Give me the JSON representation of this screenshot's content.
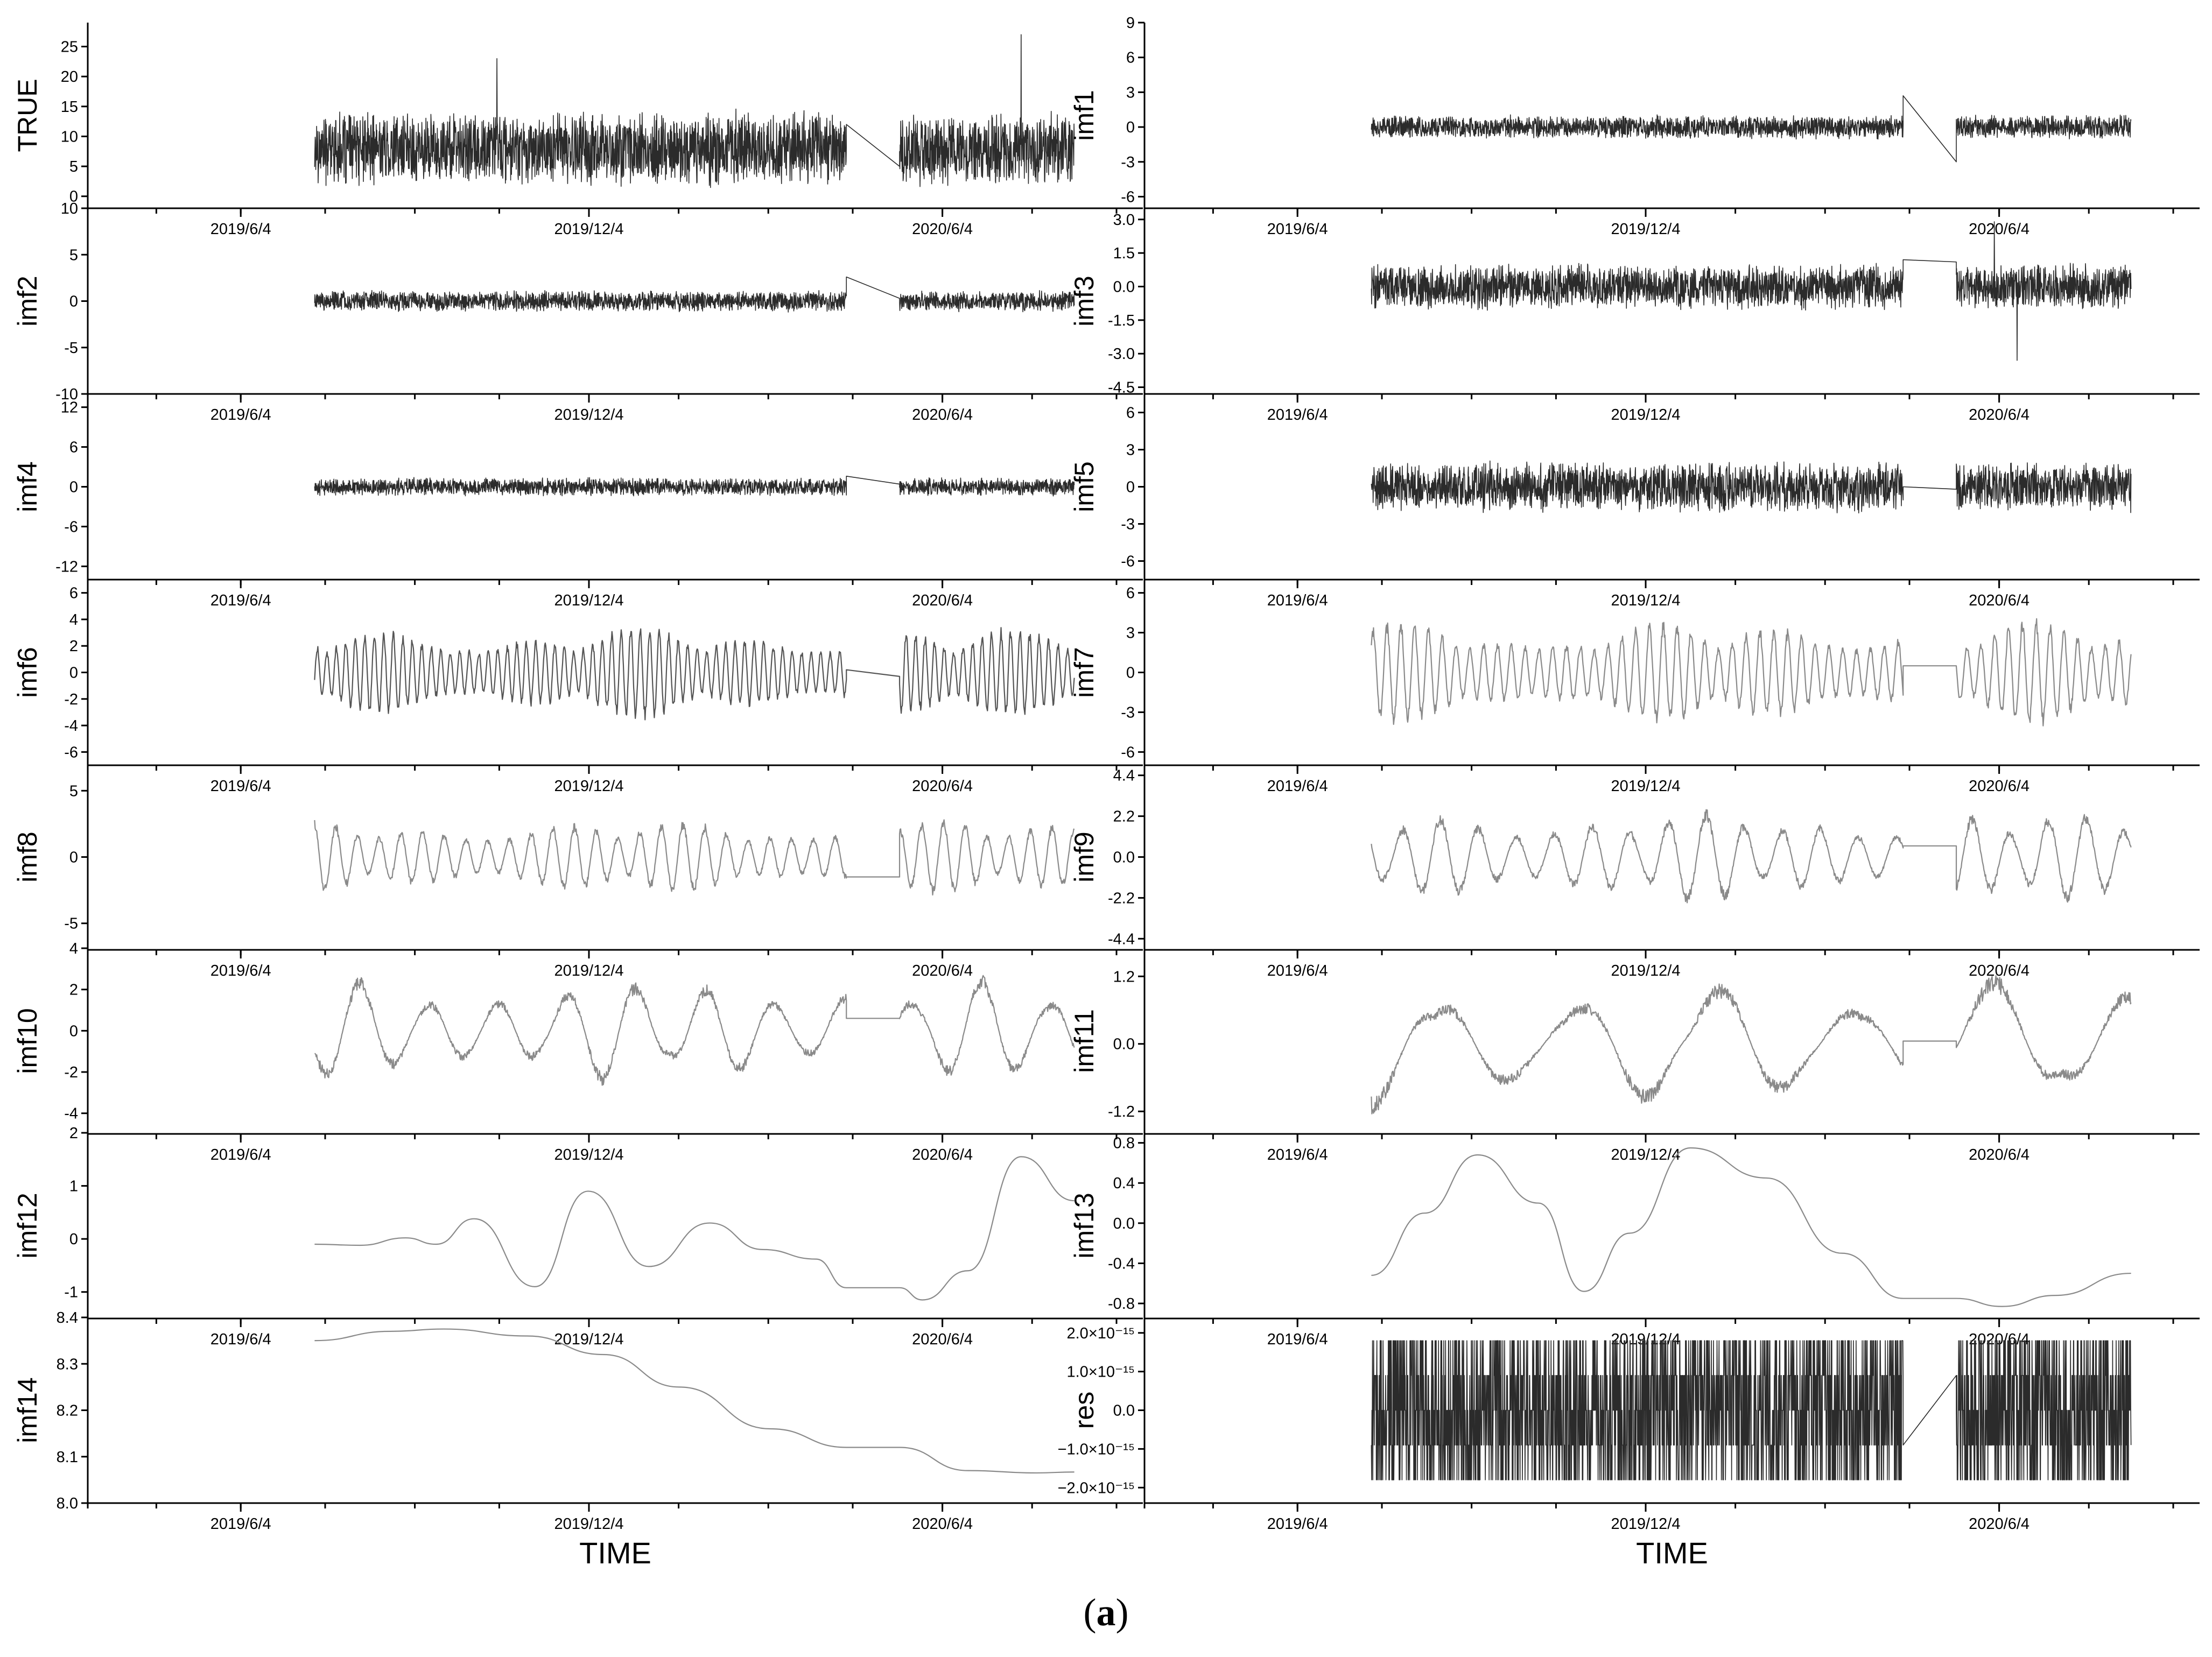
{
  "caption": {
    "prefix": "(",
    "letter": "a",
    "suffix": ")"
  },
  "colors": {
    "axis": "#000000",
    "dense": "#2b2b2b",
    "medium": "#555555",
    "light": "#8a8a8a"
  },
  "columns": [
    {
      "xlabel": "TIME"
    },
    {
      "xlabel": "TIME"
    }
  ],
  "chart_data": [
    {
      "type": "line",
      "panel": "TRUE",
      "column": 0,
      "row": 0,
      "ylabel": "TRUE",
      "ylim": [
        -2,
        29
      ],
      "yticks": [
        "0",
        "5",
        "10",
        "15",
        "20",
        "25"
      ],
      "ytick_values": [
        0,
        5,
        10,
        15,
        20,
        25
      ],
      "top_label": "",
      "xticks": [
        "2019/6/4",
        "2019/12/4",
        "2020/6/4"
      ],
      "style": "dense",
      "signal": {
        "kind": "noise",
        "base": 8,
        "amp": 5.5,
        "spikes": [
          [
            0.24,
            23
          ],
          [
            0.72,
            26
          ],
          [
            0.75,
            25.5
          ],
          [
            0.93,
            27
          ]
        ],
        "floor": 0
      },
      "gap": [
        0.7,
        0.77
      ],
      "gap_from": 12,
      "gap_to": 5,
      "xlabel": ""
    },
    {
      "type": "line",
      "panel": "imf1",
      "column": 1,
      "row": 0,
      "ylabel": "imf1",
      "ylim": [
        -7,
        9
      ],
      "yticks": [
        "-6",
        "-3",
        "0",
        "3",
        "6",
        "9"
      ],
      "ytick_values": [
        -6,
        -3,
        0,
        3,
        6,
        9
      ],
      "top_label": "",
      "xticks": [
        "2019/6/4",
        "2019/12/4",
        "2020/6/4"
      ],
      "style": "dense",
      "signal": {
        "kind": "noise",
        "base": 0,
        "amp": 0.9,
        "spikes": [
          [
            0.74,
            7
          ],
          [
            0.745,
            -5.8
          ]
        ]
      },
      "gap": [
        0.7,
        0.77
      ],
      "gap_from": 2.7,
      "gap_to": -3,
      "xlabel": ""
    },
    {
      "type": "line",
      "panel": "imf2",
      "column": 0,
      "row": 1,
      "ylabel": "imf2",
      "ylim": [
        -10,
        10
      ],
      "yticks": [
        "-10",
        "-5",
        "0",
        "5",
        "10"
      ],
      "ytick_values": [
        -10,
        -5,
        0,
        5,
        10
      ],
      "top_label": "10",
      "xticks": [
        "2019/6/4",
        "2019/12/4",
        "2020/6/4"
      ],
      "style": "dense",
      "signal": {
        "kind": "noise",
        "base": 0,
        "amp": 1.0,
        "spikes": [
          [
            0.74,
            7.8
          ],
          [
            0.742,
            -8
          ]
        ]
      },
      "gap": [
        0.7,
        0.77
      ],
      "gap_from": 2.6,
      "gap_to": 0.3,
      "xlabel": ""
    },
    {
      "type": "line",
      "panel": "imf3",
      "column": 1,
      "row": 1,
      "ylabel": "imf3",
      "ylim": [
        -4.8,
        3.5
      ],
      "yticks": [
        "-4.5",
        "-3.0",
        "-1.5",
        "0.0",
        "1.5",
        "3.0"
      ],
      "ytick_values": [
        -4.5,
        -3.0,
        -1.5,
        0.0,
        1.5,
        3.0
      ],
      "top_label": "",
      "xticks": [
        "2019/6/4",
        "2019/12/4",
        "2020/6/4"
      ],
      "style": "dense",
      "signal": {
        "kind": "noise",
        "base": 0,
        "amp": 0.9,
        "spikes": [
          [
            0.74,
            3.1
          ],
          [
            0.745,
            -3.6
          ],
          [
            0.82,
            2.9
          ],
          [
            0.85,
            -3.3
          ]
        ]
      },
      "gap": [
        0.7,
        0.77
      ],
      "gap_from": 1.2,
      "gap_to": 1.1,
      "xlabel": ""
    },
    {
      "type": "line",
      "panel": "imf4",
      "column": 0,
      "row": 2,
      "ylabel": "imf4",
      "ylim": [
        -14,
        14
      ],
      "yticks": [
        "-12",
        "-6",
        "0",
        "6",
        "12"
      ],
      "ytick_values": [
        -12,
        -6,
        0,
        6,
        12
      ],
      "top_label": "",
      "xticks": [
        "2019/6/4",
        "2019/12/4",
        "2020/6/4"
      ],
      "style": "dense",
      "signal": {
        "kind": "noise",
        "base": 0,
        "amp": 1.2,
        "spikes": [
          [
            0.74,
            12
          ],
          [
            0.742,
            -11
          ]
        ]
      },
      "gap": [
        0.7,
        0.77
      ],
      "gap_from": 1.6,
      "gap_to": 0.4,
      "xlabel": ""
    },
    {
      "type": "line",
      "panel": "imf5",
      "column": 1,
      "row": 2,
      "ylabel": "imf5",
      "ylim": [
        -7.5,
        7.5
      ],
      "yticks": [
        "-6",
        "-3",
        "0",
        "3",
        "6"
      ],
      "ytick_values": [
        -6,
        -3,
        0,
        3,
        6
      ],
      "top_label": "",
      "xticks": [
        "2019/6/4",
        "2019/12/4",
        "2020/6/4"
      ],
      "style": "dense",
      "signal": {
        "kind": "noise",
        "base": 0,
        "amp": 1.8,
        "spikes": [
          [
            0.74,
            6.5
          ],
          [
            0.745,
            -6
          ]
        ]
      },
      "gap": [
        0.7,
        0.77
      ],
      "gap_from": 0.0,
      "gap_to": -0.2,
      "xlabel": ""
    },
    {
      "type": "line",
      "panel": "imf6",
      "column": 0,
      "row": 3,
      "ylabel": "imf6",
      "ylim": [
        -7,
        7
      ],
      "yticks": [
        "-6",
        "-4",
        "-2",
        "0",
        "2",
        "4",
        "6"
      ],
      "ytick_values": [
        -6,
        -4,
        -2,
        0,
        2,
        4,
        6
      ],
      "top_label": "",
      "xticks": [
        "2019/6/4",
        "2019/12/4",
        "2020/6/4"
      ],
      "style": "medium",
      "signal": {
        "kind": "osc",
        "base": 0,
        "amp": 3.2,
        "freq": 160
      },
      "gap": [
        0.7,
        0.77
      ],
      "gap_from": 0.2,
      "gap_to": -0.3,
      "xlabel": ""
    },
    {
      "type": "line",
      "panel": "imf7",
      "column": 1,
      "row": 3,
      "ylabel": "imf7",
      "ylim": [
        -7,
        7
      ],
      "yticks": [
        "-6",
        "-3",
        "0",
        "3",
        "6"
      ],
      "ytick_values": [
        -6,
        -3,
        0,
        3,
        6
      ],
      "top_label": "",
      "xticks": [
        "2019/6/4",
        "2019/12/4",
        "2020/6/4"
      ],
      "style": "light",
      "signal": {
        "kind": "osc",
        "base": 0,
        "amp": 3.6,
        "freq": 110
      },
      "gap": [
        0.7,
        0.77
      ],
      "gap_from": 0.5,
      "gap_to": 0.5,
      "xlabel": ""
    },
    {
      "type": "line",
      "panel": "imf8",
      "column": 0,
      "row": 4,
      "ylabel": "imf8",
      "ylim": [
        -7,
        7
      ],
      "yticks": [
        "-5",
        "0",
        "5"
      ],
      "ytick_values": [
        -5,
        0,
        5
      ],
      "top_label": "",
      "xticks": [
        "2019/6/4",
        "2019/12/4",
        "2020/6/4"
      ],
      "style": "light",
      "signal": {
        "kind": "osc",
        "base": 0,
        "amp": 2.6,
        "freq": 70
      },
      "gap": [
        0.7,
        0.77
      ],
      "gap_from": -1.5,
      "gap_to": -1.5,
      "xlabel": ""
    },
    {
      "type": "line",
      "panel": "imf9",
      "column": 1,
      "row": 4,
      "ylabel": "imf9",
      "ylim": [
        -5,
        5
      ],
      "yticks": [
        "-4.4",
        "-2.2",
        "0.0",
        "2.2",
        "4.4"
      ],
      "ytick_values": [
        -4.4,
        -2.2,
        0.0,
        2.2,
        4.4
      ],
      "top_label": "",
      "xticks": [
        "2019/6/4",
        "2019/12/4",
        "2020/6/4"
      ],
      "style": "light",
      "signal": {
        "kind": "osc",
        "base": 0,
        "amp": 2.3,
        "freq": 40
      },
      "gap": [
        0.7,
        0.77
      ],
      "gap_from": 0.6,
      "gap_to": 0.6,
      "xlabel": ""
    },
    {
      "type": "line",
      "panel": "imf10",
      "column": 0,
      "row": 5,
      "ylabel": "imf10",
      "ylim": [
        -5,
        4
      ],
      "yticks": [
        "-4",
        "-2",
        "0",
        "2",
        "4"
      ],
      "ytick_values": [
        -4,
        -2,
        0,
        2,
        4
      ],
      "top_label": "4",
      "xticks": [
        "2019/6/4",
        "2019/12/4",
        "2020/6/4"
      ],
      "style": "light",
      "signal": {
        "kind": "osc",
        "base": 0,
        "amp": 2.4,
        "freq": 22
      },
      "gap": [
        0.7,
        0.77
      ],
      "gap_from": 0.6,
      "gap_to": 0.6,
      "xlabel": ""
    },
    {
      "type": "line",
      "panel": "imf11",
      "column": 1,
      "row": 5,
      "ylabel": "imf11",
      "ylim": [
        -1.6,
        1.7
      ],
      "yticks": [
        "-1.2",
        "0.0",
        "1.2"
      ],
      "ytick_values": [
        -1.2,
        0.0,
        1.2
      ],
      "top_label": "",
      "xticks": [
        "2019/6/4",
        "2019/12/4",
        "2020/6/4"
      ],
      "style": "light",
      "signal": {
        "kind": "osc",
        "base": 0,
        "amp": 1.1,
        "freq": 11
      },
      "gap": [
        0.7,
        0.77
      ],
      "gap_from": 0.05,
      "gap_to": 0.05,
      "xlabel": ""
    },
    {
      "type": "line",
      "panel": "imf12",
      "column": 0,
      "row": 6,
      "ylabel": "imf12",
      "ylim": [
        -1.5,
        2
      ],
      "yticks": [
        "-1",
        "0",
        "1",
        "2"
      ],
      "ytick_values": [
        -1,
        0,
        1,
        2
      ],
      "top_label": "2",
      "xticks": [
        "2019/6/4",
        "2019/12/4",
        "2020/6/4"
      ],
      "style": "light",
      "signal": {
        "kind": "points",
        "pts": [
          [
            0,
            -0.1
          ],
          [
            0.06,
            -0.12
          ],
          [
            0.12,
            0.02
          ],
          [
            0.16,
            -0.1
          ],
          [
            0.21,
            0.38
          ],
          [
            0.29,
            -0.9
          ],
          [
            0.36,
            0.9
          ],
          [
            0.44,
            -0.52
          ],
          [
            0.52,
            0.3
          ],
          [
            0.59,
            -0.2
          ],
          [
            0.66,
            -0.38
          ],
          [
            0.7,
            -0.92
          ],
          [
            0.77,
            -0.92
          ],
          [
            0.8,
            -1.15
          ],
          [
            0.86,
            -0.6
          ],
          [
            0.93,
            1.55
          ],
          [
            1.0,
            0.72
          ]
        ]
      },
      "gap": null,
      "xlabel": "",
      "smooth": true
    },
    {
      "type": "line",
      "panel": "imf13",
      "column": 1,
      "row": 6,
      "ylabel": "imf13",
      "ylim": [
        -0.95,
        0.9
      ],
      "yticks": [
        "-0.8",
        "-0.4",
        "0.0",
        "0.4",
        "0.8"
      ],
      "ytick_values": [
        -0.8,
        -0.4,
        0.0,
        0.4,
        0.8
      ],
      "top_label": "",
      "xticks": [
        "2019/6/4",
        "2019/12/4",
        "2020/6/4"
      ],
      "style": "light",
      "signal": {
        "kind": "points",
        "pts": [
          [
            0,
            -0.52
          ],
          [
            0.07,
            0.1
          ],
          [
            0.14,
            0.68
          ],
          [
            0.22,
            0.2
          ],
          [
            0.28,
            -0.68
          ],
          [
            0.34,
            -0.1
          ],
          [
            0.42,
            0.75
          ],
          [
            0.52,
            0.45
          ],
          [
            0.62,
            -0.3
          ],
          [
            0.7,
            -0.75
          ],
          [
            0.77,
            -0.75
          ],
          [
            0.83,
            -0.83
          ],
          [
            0.9,
            -0.72
          ],
          [
            1.0,
            -0.5
          ]
        ]
      },
      "gap": null,
      "xlabel": "",
      "smooth": true
    },
    {
      "type": "line",
      "panel": "imf14",
      "column": 0,
      "row": 7,
      "ylabel": "imf14",
      "ylim": [
        8.0,
        8.4
      ],
      "yticks": [
        "8.0",
        "8.1",
        "8.2",
        "8.3",
        "8.4"
      ],
      "ytick_values": [
        8.0,
        8.1,
        8.2,
        8.3,
        8.4
      ],
      "top_label": "8.4",
      "xticks": [
        "2019/6/4",
        "2019/12/4",
        "2020/6/4"
      ],
      "style": "light",
      "signal": {
        "kind": "points",
        "pts": [
          [
            0,
            8.35
          ],
          [
            0.1,
            8.37
          ],
          [
            0.17,
            8.375
          ],
          [
            0.28,
            8.36
          ],
          [
            0.38,
            8.32
          ],
          [
            0.48,
            8.25
          ],
          [
            0.6,
            8.16
          ],
          [
            0.7,
            8.12
          ],
          [
            0.77,
            8.12
          ],
          [
            0.86,
            8.07
          ],
          [
            0.95,
            8.065
          ],
          [
            1.0,
            8.067
          ]
        ]
      },
      "gap": null,
      "xlabel": "TIME",
      "smooth": true
    },
    {
      "type": "line",
      "panel": "res",
      "column": 1,
      "row": 7,
      "ylabel": "res",
      "ylim": [
        -2.4,
        2.4
      ],
      "yticks": [
        "−2.0×10⁻¹⁵",
        "−1.0×10⁻¹⁵",
        "0.0",
        "1.0×10⁻¹⁵",
        "2.0×10⁻¹⁵"
      ],
      "ytick_values": [
        -2,
        -1,
        0,
        1,
        2
      ],
      "top_label": "",
      "xticks": [
        "2019/6/4",
        "2019/12/4",
        "2020/6/4"
      ],
      "style": "dense",
      "signal": {
        "kind": "levels",
        "levels": [
          -1.8,
          -0.9,
          0,
          0.9,
          1.8
        ]
      },
      "gap": [
        0.7,
        0.77
      ],
      "gap_from": -0.9,
      "gap_to": 0.9,
      "xlabel": "TIME",
      "unit": "×10⁻¹⁵"
    }
  ]
}
